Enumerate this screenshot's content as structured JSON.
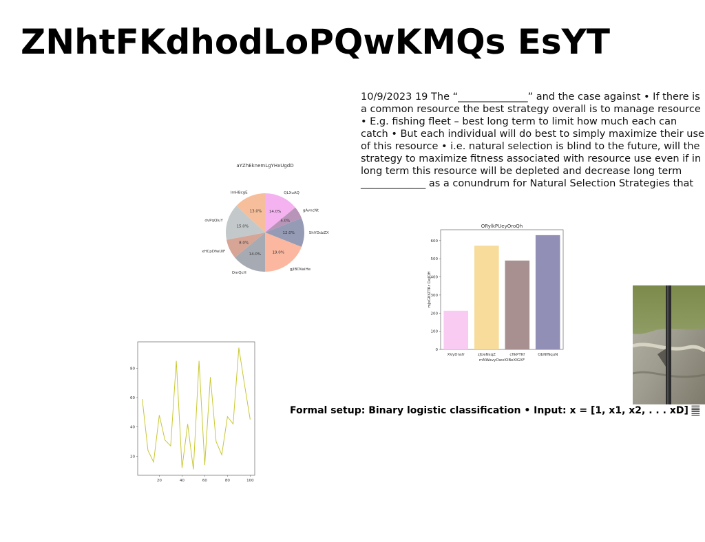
{
  "page": {
    "title": "ZNhtFKdhodLoPQwKMQs EsYT",
    "body_text": "10/9/2023 19 The “______________” and the case against • If there is a common resource the best strategy overall is to manage resource • E.g. fishing fleet – best long term to limit how much each can catch • But each individual will do best to simply maximize their use of this resource • i.e. natural selection is blind to the future, will the strategy to maximize fitness associated with resource use even if in long term this resource will be depleted and decrease long term _____________ as a conundrum for Natural Selection Strategies that",
    "caption": "Formal setup: Binary logistic classification • Input: x = [1, x1, x2, . . . xD] 𝄛"
  },
  "chart_data": [
    {
      "type": "pie",
      "title": "aYZhEknemLgYHxUgdD",
      "labels": [
        "QLXuAQ",
        "gAvncNt",
        "ShVDdzZX",
        "gjlBOVaiHe",
        "OmQcH",
        "xHCpDfwUIF",
        "dvPqQluY",
        "lmHBcgE"
      ],
      "values": [
        14.0,
        5.0,
        12.0,
        19.0,
        14.0,
        8.0,
        15.0,
        13.0
      ],
      "value_labels": [
        "14.0%",
        "5.0%",
        "12.0%",
        "19.0%",
        "14.0%",
        "8.0%",
        "15.0%",
        "13.0%"
      ],
      "colors": [
        "#f4b2f0",
        "#b894b8",
        "#959bb5",
        "#fbb79f",
        "#a6aab2",
        "#d6a596",
        "#c3c9ca",
        "#f6be9a"
      ]
    },
    {
      "type": "bar",
      "title": "ORylkPUeyOroQh",
      "xlabel": "mNWavyOwxIOBeXIGXF",
      "ylabel": "mJxGKtZTRr DeJQH",
      "categories": [
        "XVyDnsfr",
        "zJUeNsqZ",
        "cfikPTKf",
        "QbNfNquN"
      ],
      "values": [
        213,
        572,
        490,
        630
      ],
      "ylim": [
        0,
        660
      ],
      "yticks": [
        0,
        100,
        200,
        300,
        400,
        500,
        600
      ],
      "colors": [
        "#f9cbf3",
        "#f7dc9b",
        "#a89090",
        "#918fb5"
      ]
    },
    {
      "type": "line",
      "x": [
        5,
        10,
        15,
        20,
        25,
        30,
        35,
        40,
        45,
        50,
        55,
        60,
        65,
        70,
        75,
        80,
        85,
        90,
        95,
        100
      ],
      "series": [
        {
          "values": [
            59,
            24,
            16,
            48,
            31,
            27,
            85,
            12,
            42,
            11,
            85,
            14,
            74,
            30,
            21,
            47,
            42,
            94,
            69,
            45
          ]
        }
      ],
      "xlim": [
        1,
        104
      ],
      "ylim": [
        7,
        98
      ],
      "xticks": [
        20,
        40,
        60,
        80,
        100
      ],
      "yticks": [
        20,
        40,
        60,
        80
      ],
      "color": "#c8c832"
    }
  ]
}
